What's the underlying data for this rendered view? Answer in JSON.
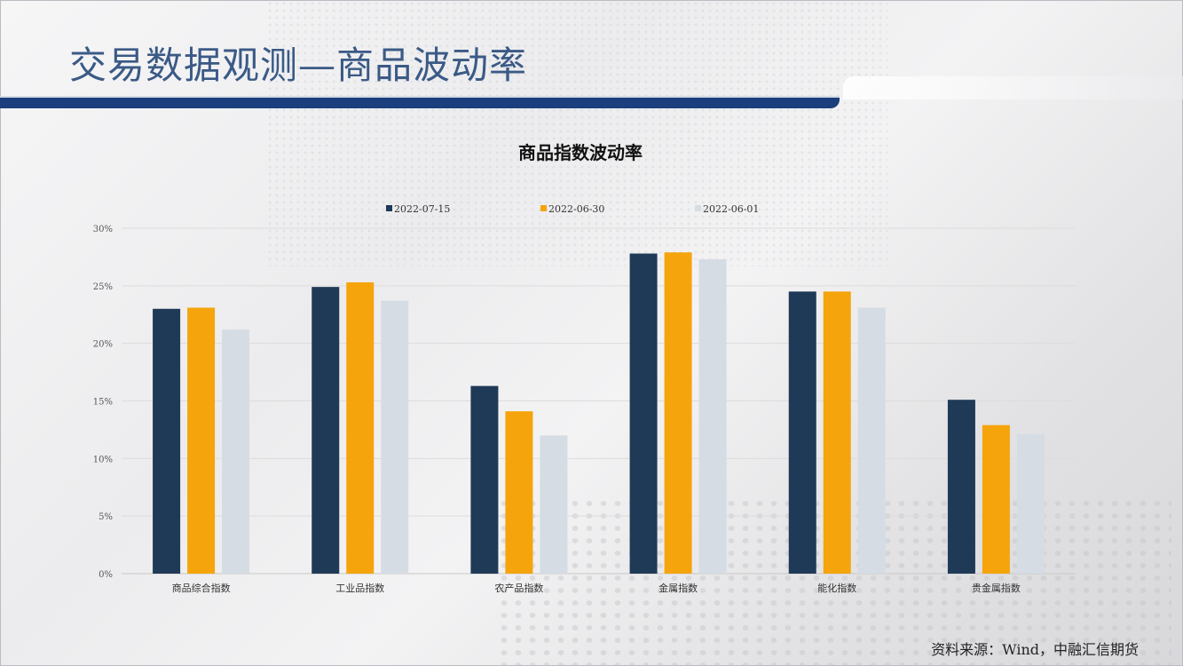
{
  "slide": {
    "title": "交易数据观测—商品波动率",
    "source": "资料来源：Wind，中融汇信期货"
  },
  "chart_data": {
    "type": "bar",
    "title": "商品指数波动率",
    "categories": [
      "商品综合指数",
      "工业品指数",
      "农产品指数",
      "金属指数",
      "能化指数",
      "贵金属指数"
    ],
    "series": [
      {
        "name": "2022-07-15",
        "color": "#1f3a56",
        "values": [
          0.23,
          0.249,
          0.163,
          0.278,
          0.245,
          0.151
        ]
      },
      {
        "name": "2022-06-30",
        "color": "#f5a40c",
        "values": [
          0.231,
          0.253,
          0.141,
          0.279,
          0.245,
          0.129
        ]
      },
      {
        "name": "2022-06-01",
        "color": "#d6dce4",
        "values": [
          0.212,
          0.237,
          0.12,
          0.273,
          0.231,
          0.121
        ]
      }
    ],
    "ylim": [
      0,
      0.3
    ],
    "yticks": [
      "0%",
      "5%",
      "10%",
      "15%",
      "20%",
      "25%",
      "30%"
    ],
    "grid": true,
    "legend_position": "top"
  }
}
